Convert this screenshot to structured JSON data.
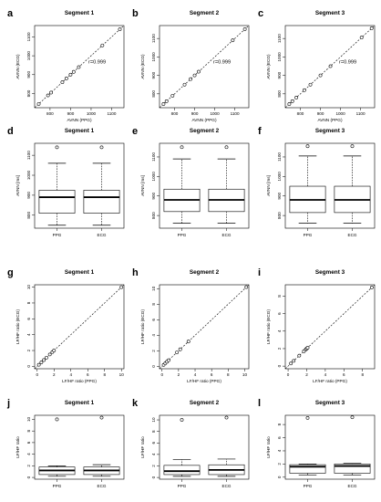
{
  "figure": {
    "rows": [
      {
        "type": "scatter",
        "ylabel": "AVNN (ECG)",
        "xlabel": "AVNN (PPG)",
        "panels": [
          {
            "letter": "a",
            "title": "Segment 1",
            "r_text": "r=0.999",
            "xticks": [
              800,
              900,
              1000,
              1100
            ],
            "yticks": [
              800,
              900,
              1000,
              1100
            ],
            "points": [
              [
                745,
                745
              ],
              [
                790,
                790
              ],
              [
                805,
                805
              ],
              [
                860,
                860
              ],
              [
                880,
                880
              ],
              [
                900,
                900
              ],
              [
                915,
                915
              ],
              [
                940,
                940
              ],
              [
                1055,
                1055
              ],
              [
                1140,
                1140
              ]
            ],
            "xlim": [
              725,
              1160
            ],
            "ylim": [
              725,
              1160
            ]
          },
          {
            "letter": "b",
            "title": "Segment 2",
            "r_text": "r=0.999",
            "xticks": [
              800,
              900,
              1000,
              1100
            ],
            "yticks": [
              800,
              900,
              1000,
              1100
            ],
            "points": [
              [
                745,
                745
              ],
              [
                760,
                760
              ],
              [
                790,
                790
              ],
              [
                850,
                850
              ],
              [
                880,
                880
              ],
              [
                900,
                900
              ],
              [
                920,
                920
              ],
              [
                1090,
                1090
              ],
              [
                1150,
                1150
              ]
            ],
            "xlim": [
              725,
              1170
            ],
            "ylim": [
              725,
              1170
            ]
          },
          {
            "letter": "c",
            "title": "Segment 3",
            "r_text": "r=0.999",
            "xticks": [
              800,
              900,
              1000,
              1100
            ],
            "yticks": [
              800,
              900,
              1000,
              1100
            ],
            "points": [
              [
                745,
                745
              ],
              [
                760,
                760
              ],
              [
                780,
                780
              ],
              [
                820,
                820
              ],
              [
                850,
                850
              ],
              [
                900,
                900
              ],
              [
                950,
                950
              ],
              [
                1105,
                1105
              ],
              [
                1155,
                1155
              ]
            ],
            "xlim": [
              725,
              1170
            ],
            "ylim": [
              725,
              1170
            ]
          }
        ]
      },
      {
        "type": "box",
        "ylabel": "AVNN [ms]",
        "panels": [
          {
            "letter": "d",
            "title": "Segment 1",
            "yticks": [
              800,
              900,
              1000,
              1100
            ],
            "ylim": [
              735,
              1160
            ],
            "boxes": [
              {
                "label": "PPG",
                "whislo": 750,
                "q1": 810,
                "med": 890,
                "q3": 925,
                "whishi": 1060,
                "fliers": [
                  1140
                ]
              },
              {
                "label": "ECG",
                "whislo": 750,
                "q1": 810,
                "med": 890,
                "q3": 925,
                "whishi": 1060,
                "fliers": [
                  1140
                ]
              }
            ]
          },
          {
            "letter": "e",
            "title": "Segment 2",
            "yticks": [
              800,
              900,
              1000,
              1100
            ],
            "ylim": [
              735,
              1170
            ],
            "boxes": [
              {
                "label": "PPG",
                "whislo": 760,
                "q1": 820,
                "med": 880,
                "q3": 935,
                "whishi": 1090,
                "fliers": [
                  1150
                ]
              },
              {
                "label": "ECG",
                "whislo": 760,
                "q1": 820,
                "med": 880,
                "q3": 935,
                "whishi": 1090,
                "fliers": [
                  1150
                ]
              }
            ]
          },
          {
            "letter": "f",
            "title": "Segment 3",
            "yticks": [
              800,
              900,
              1000,
              1100
            ],
            "ylim": [
              735,
              1170
            ],
            "boxes": [
              {
                "label": "PPG",
                "whislo": 760,
                "q1": 815,
                "med": 880,
                "q3": 950,
                "whishi": 1105,
                "fliers": [
                  1155
                ]
              },
              {
                "label": "ECG",
                "whislo": 760,
                "q1": 815,
                "med": 880,
                "q3": 950,
                "whishi": 1105,
                "fliers": [
                  1155
                ]
              }
            ]
          }
        ]
      },
      {
        "type": "scatter",
        "ylabel": "LF/HF ratio (ECG)",
        "xlabel": "LF/HF ratio (PPG)",
        "panels": [
          {
            "letter": "g",
            "title": "Segment 1",
            "xticks": [
              0,
              2,
              4,
              6,
              8,
              10
            ],
            "yticks": [
              0,
              2,
              4,
              6,
              8,
              10
            ],
            "points": [
              [
                0.2,
                0.2
              ],
              [
                0.5,
                0.5
              ],
              [
                0.8,
                0.8
              ],
              [
                1.1,
                1.1
              ],
              [
                1.5,
                1.5
              ],
              [
                1.8,
                1.8
              ],
              [
                2.0,
                2.0
              ],
              [
                10.0,
                10.0
              ]
            ],
            "xlim": [
              -0.3,
              10.3
            ],
            "ylim": [
              -0.3,
              10.3
            ]
          },
          {
            "letter": "h",
            "title": "Segment 2",
            "xticks": [
              0,
              2,
              4,
              6,
              8,
              10
            ],
            "yticks": [
              0,
              2,
              4,
              6,
              8,
              10
            ],
            "points": [
              [
                0.2,
                0.2
              ],
              [
                0.4,
                0.4
              ],
              [
                0.6,
                0.6
              ],
              [
                0.8,
                0.8
              ],
              [
                1.8,
                1.8
              ],
              [
                2.2,
                2.2
              ],
              [
                3.2,
                3.2
              ],
              [
                10.2,
                10.2
              ]
            ],
            "xlim": [
              -0.3,
              10.5
            ],
            "ylim": [
              -0.3,
              10.5
            ]
          },
          {
            "letter": "i",
            "title": "Segment 3",
            "xticks": [
              0,
              2,
              4,
              6,
              8
            ],
            "yticks": [
              0,
              2,
              4,
              6,
              8
            ],
            "points": [
              [
                0.3,
                0.3
              ],
              [
                0.6,
                0.6
              ],
              [
                1.2,
                1.2
              ],
              [
                1.7,
                1.7
              ],
              [
                1.9,
                1.9
              ],
              [
                2.0,
                2.0
              ],
              [
                2.1,
                2.1
              ],
              [
                9.0,
                9.0
              ]
            ],
            "xlim": [
              -0.3,
              9.3
            ],
            "ylim": [
              -0.3,
              9.3
            ]
          }
        ]
      },
      {
        "type": "box",
        "ylabel": "LF/HF ratio",
        "panels": [
          {
            "letter": "j",
            "title": "Segment 1",
            "yticks": [
              0,
              2,
              4,
              6,
              8,
              10
            ],
            "ylim": [
              -0.3,
              10.7
            ],
            "boxes": [
              {
                "label": "PPG",
                "whislo": 0.2,
                "q1": 0.5,
                "med": 1.2,
                "q3": 1.8,
                "whishi": 2.0,
                "fliers": [
                  10.0
                ]
              },
              {
                "label": "ECG",
                "whislo": 0.2,
                "q1": 0.5,
                "med": 1.2,
                "q3": 1.8,
                "whishi": 2.2,
                "fliers": [
                  10.3
                ]
              }
            ]
          },
          {
            "letter": "k",
            "title": "Segment 2",
            "yticks": [
              0,
              2,
              4,
              6,
              8,
              10
            ],
            "ylim": [
              -0.3,
              10.8
            ],
            "boxes": [
              {
                "label": "PPG",
                "whislo": 0.2,
                "q1": 0.5,
                "med": 1.1,
                "q3": 2.1,
                "whishi": 3.1,
                "fliers": [
                  10.0
                ]
              },
              {
                "label": "ECG",
                "whislo": 0.2,
                "q1": 0.5,
                "med": 1.3,
                "q3": 2.2,
                "whishi": 3.2,
                "fliers": [
                  10.4
                ]
              }
            ]
          },
          {
            "letter": "l",
            "title": "Segment 3",
            "yticks": [
              0,
              2,
              4,
              6,
              8
            ],
            "ylim": [
              -0.3,
              9.4
            ],
            "boxes": [
              {
                "label": "PPG",
                "whislo": 0.3,
                "q1": 0.6,
                "med": 1.6,
                "q3": 1.9,
                "whishi": 2.0,
                "fliers": [
                  9.0
                ]
              },
              {
                "label": "ECG",
                "whislo": 0.3,
                "q1": 0.6,
                "med": 1.7,
                "q3": 2.0,
                "whishi": 2.1,
                "fliers": [
                  9.1
                ]
              }
            ]
          }
        ]
      }
    ]
  }
}
